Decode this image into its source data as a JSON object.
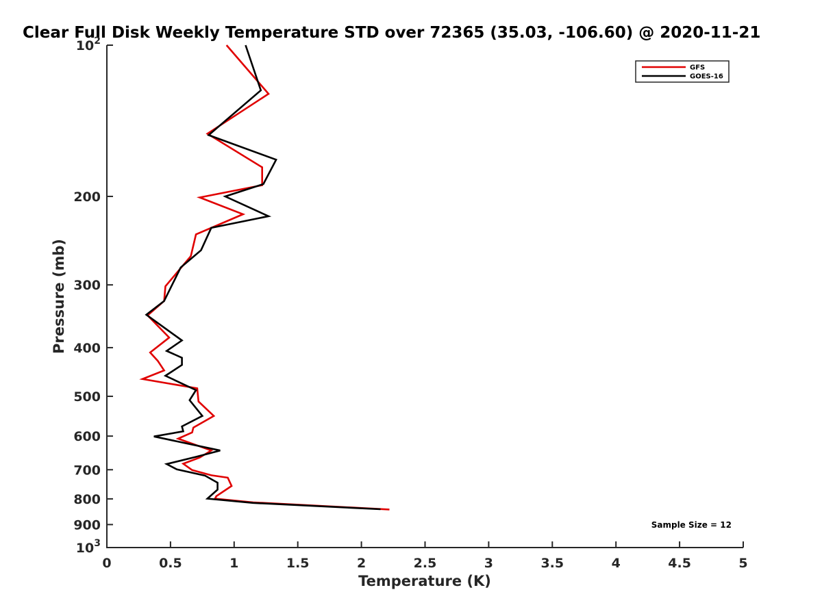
{
  "chart_data": {
    "type": "line",
    "title": "Clear Full Disk Weekly Temperature STD over 72365 (35.03, -106.60) @ 2020-11-21",
    "xlabel": "Temperature (K)",
    "ylabel": "Pressure (mb)",
    "xlim": [
      0,
      5
    ],
    "ylim": [
      100,
      1000
    ],
    "y_scale": "log",
    "y_reversed": true,
    "grid": false,
    "legend_position": "top-right",
    "x_ticks": [
      {
        "value": 0,
        "label": "0"
      },
      {
        "value": 0.5,
        "label": "0.5"
      },
      {
        "value": 1,
        "label": "1"
      },
      {
        "value": 1.5,
        "label": "1.5"
      },
      {
        "value": 2,
        "label": "2"
      },
      {
        "value": 2.5,
        "label": "2.5"
      },
      {
        "value": 3,
        "label": "3"
      },
      {
        "value": 3.5,
        "label": "3.5"
      },
      {
        "value": 4,
        "label": "4"
      },
      {
        "value": 4.5,
        "label": "4.5"
      },
      {
        "value": 5,
        "label": "5"
      }
    ],
    "y_ticks": [
      {
        "value": 100,
        "base": "10",
        "exp": "2"
      },
      {
        "value": 200,
        "label": "200"
      },
      {
        "value": 300,
        "label": "300"
      },
      {
        "value": 400,
        "label": "400"
      },
      {
        "value": 500,
        "label": "500"
      },
      {
        "value": 600,
        "label": "600"
      },
      {
        "value": 700,
        "label": "700"
      },
      {
        "value": 800,
        "label": "800"
      },
      {
        "value": 900,
        "label": "900"
      },
      {
        "value": 1000,
        "base": "10",
        "exp": "3"
      }
    ],
    "annotation": "Sample Size = 12",
    "series": [
      {
        "name": "GFS",
        "color": "#e00000",
        "points": [
          [
            0.94,
            100
          ],
          [
            1.27,
            125
          ],
          [
            0.79,
            150
          ],
          [
            1.22,
            175
          ],
          [
            1.22,
            190
          ],
          [
            0.73,
            201
          ],
          [
            1.07,
            217
          ],
          [
            0.7,
            238
          ],
          [
            0.66,
            263
          ],
          [
            0.46,
            302
          ],
          [
            0.45,
            323
          ],
          [
            0.32,
            345
          ],
          [
            0.49,
            382
          ],
          [
            0.34,
            409
          ],
          [
            0.4,
            425
          ],
          [
            0.45,
            444
          ],
          [
            0.28,
            462
          ],
          [
            0.71,
            482
          ],
          [
            0.72,
            512
          ],
          [
            0.84,
            547
          ],
          [
            0.68,
            577
          ],
          [
            0.67,
            590
          ],
          [
            0.56,
            607
          ],
          [
            0.82,
            641
          ],
          [
            0.73,
            662
          ],
          [
            0.6,
            681
          ],
          [
            0.67,
            701
          ],
          [
            0.82,
            718
          ],
          [
            0.95,
            726
          ],
          [
            0.98,
            754
          ],
          [
            0.86,
            790
          ],
          [
            0.85,
            799
          ],
          [
            1.15,
            813
          ],
          [
            2.22,
            840
          ]
        ]
      },
      {
        "name": "GOES-16",
        "color": "#000000",
        "points": [
          [
            1.09,
            100
          ],
          [
            1.21,
            123
          ],
          [
            0.8,
            151
          ],
          [
            1.33,
            169
          ],
          [
            1.23,
            189
          ],
          [
            0.93,
            200
          ],
          [
            1.27,
            219
          ],
          [
            0.82,
            231
          ],
          [
            0.74,
            256
          ],
          [
            0.58,
            277
          ],
          [
            0.45,
            323
          ],
          [
            0.31,
            344
          ],
          [
            0.59,
            387
          ],
          [
            0.47,
            406
          ],
          [
            0.59,
            419
          ],
          [
            0.59,
            433
          ],
          [
            0.46,
            455
          ],
          [
            0.7,
            486
          ],
          [
            0.65,
            509
          ],
          [
            0.75,
            547
          ],
          [
            0.59,
            574
          ],
          [
            0.6,
            587
          ],
          [
            0.37,
            601
          ],
          [
            0.89,
            641
          ],
          [
            0.7,
            660
          ],
          [
            0.47,
            682
          ],
          [
            0.55,
            699
          ],
          [
            0.77,
            719
          ],
          [
            0.87,
            743
          ],
          [
            0.87,
            767
          ],
          [
            0.79,
            799
          ],
          [
            1.15,
            815
          ],
          [
            2.15,
            839
          ]
        ]
      }
    ]
  }
}
